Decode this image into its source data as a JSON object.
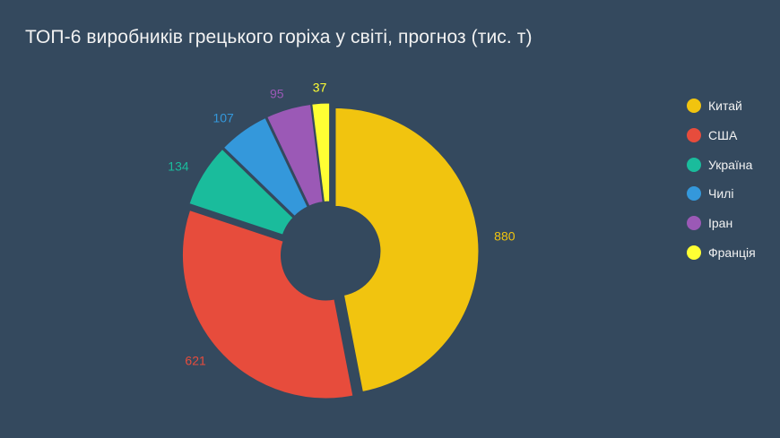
{
  "chart_data": {
    "type": "pie",
    "variant": "donut",
    "title": "ТОП-6 виробників грецького горіха у світі, прогноз (тис. т)",
    "categories": [
      "Китай",
      "США",
      "Україна",
      "Чилі",
      "Іран",
      "Франція"
    ],
    "values": [
      880,
      621,
      134,
      107,
      95,
      37
    ],
    "colors": [
      "#f1c40f",
      "#e74c3c",
      "#1abc9c",
      "#3498db",
      "#9b59b6",
      "#ffff33"
    ],
    "legend_position": "right",
    "data_labels": true,
    "background": "#34495e"
  }
}
